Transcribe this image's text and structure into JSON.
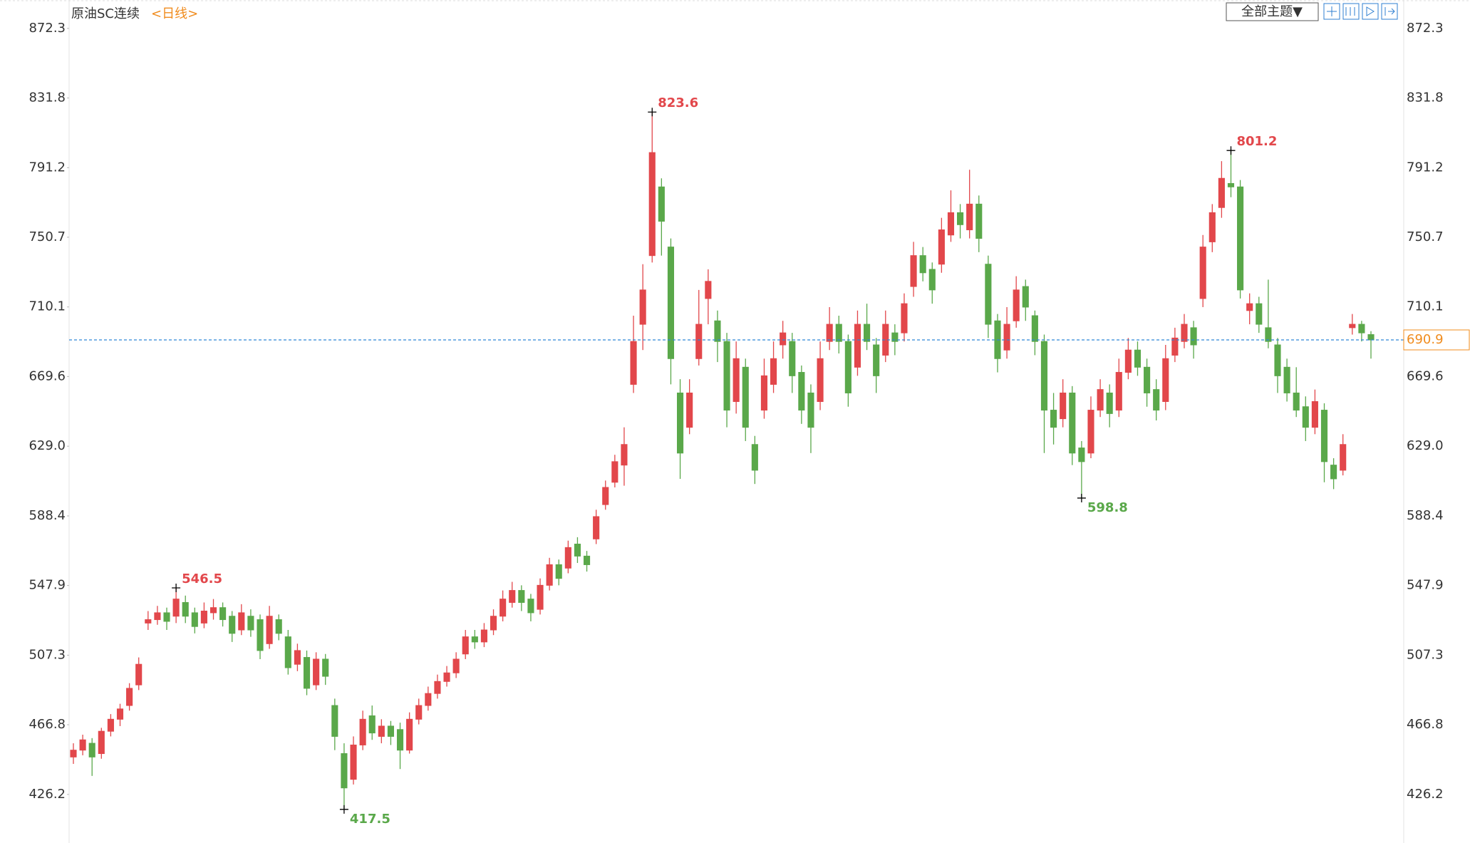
{
  "chart_data": {
    "type": "candlestick",
    "title": "原油SC连续",
    "period": "<日线>",
    "theme_button": "全部主题▼",
    "up_color": "#e2474b",
    "down_color": "#5aa84a",
    "last_line_color": "#2f86d6",
    "ylim": [
      400,
      887.6
    ],
    "yticks": [
      426.2,
      466.8,
      507.3,
      547.9,
      588.4,
      {
        "value": 629,
        "label": "629.0"
      },
      669.6,
      710.1,
      750.7,
      791.2,
      831.8,
      872.3
    ],
    "marked_highs": [
      11,
      62,
      124
    ],
    "marked_lows": [
      29,
      108
    ],
    "ohlc": [
      [
        448,
        456,
        444,
        452
      ],
      [
        452,
        461,
        449,
        458
      ],
      [
        456,
        459,
        437,
        448
      ],
      [
        450,
        465,
        447,
        463
      ],
      [
        463,
        473,
        460,
        470
      ],
      [
        470,
        479,
        466,
        476
      ],
      [
        478,
        491,
        475,
        488
      ],
      [
        490,
        506,
        487,
        502
      ],
      [
        526,
        533,
        522,
        528
      ],
      [
        528,
        536,
        525,
        532
      ],
      [
        532,
        535,
        522,
        527
      ],
      [
        530,
        546.5,
        526,
        540
      ],
      [
        538,
        542,
        526,
        530
      ],
      [
        532,
        535,
        520,
        524
      ],
      [
        526,
        538,
        523,
        533
      ],
      [
        532,
        540,
        528,
        535
      ],
      [
        535,
        538,
        524,
        528
      ],
      [
        530,
        533,
        515,
        520
      ],
      [
        522,
        537,
        519,
        532
      ],
      [
        530,
        534,
        518,
        522
      ],
      [
        528,
        531,
        505,
        510
      ],
      [
        514,
        536,
        511,
        530
      ],
      [
        528,
        531,
        516,
        520
      ],
      [
        518,
        522,
        496,
        500
      ],
      [
        502,
        514,
        498,
        510
      ],
      [
        506,
        510,
        484,
        488
      ],
      [
        490,
        509,
        487,
        505
      ],
      [
        505,
        508,
        490,
        495
      ],
      [
        478,
        482,
        452,
        460
      ],
      [
        450,
        456,
        417.5,
        430
      ],
      [
        435,
        460,
        432,
        455
      ],
      [
        455,
        475,
        452,
        470
      ],
      [
        472,
        478,
        458,
        462
      ],
      [
        460,
        470,
        456,
        466
      ],
      [
        466,
        469,
        455,
        460
      ],
      [
        464,
        468,
        441,
        452
      ],
      [
        452,
        474,
        450,
        470
      ],
      [
        470,
        482,
        467,
        478
      ],
      [
        478,
        489,
        475,
        485
      ],
      [
        485,
        496,
        482,
        492
      ],
      [
        492,
        501,
        489,
        497
      ],
      [
        497,
        509,
        494,
        505
      ],
      [
        508,
        522,
        505,
        518
      ],
      [
        518,
        522,
        511,
        515
      ],
      [
        515,
        526,
        512,
        522
      ],
      [
        522,
        534,
        519,
        530
      ],
      [
        530,
        545,
        527,
        540
      ],
      [
        538,
        550,
        535,
        545
      ],
      [
        545,
        548,
        533,
        538
      ],
      [
        540,
        543,
        527,
        532
      ],
      [
        534,
        552,
        531,
        548
      ],
      [
        548,
        564,
        545,
        560
      ],
      [
        560,
        563,
        548,
        552
      ],
      [
        558,
        574,
        555,
        570
      ],
      [
        572,
        576,
        561,
        565
      ],
      [
        565,
        568,
        556,
        560
      ],
      [
        575,
        592,
        572,
        588
      ],
      [
        595,
        609,
        592,
        605
      ],
      [
        608,
        624,
        605,
        620
      ],
      [
        618,
        640,
        606,
        630
      ],
      [
        665,
        705,
        660,
        690
      ],
      [
        700,
        735,
        685,
        720
      ],
      [
        740,
        823.6,
        736,
        800
      ],
      [
        780,
        785,
        740,
        760
      ],
      [
        745,
        750,
        665,
        680
      ],
      [
        660,
        668,
        610,
        625
      ],
      [
        640,
        668,
        636,
        660
      ],
      [
        680,
        720,
        676,
        700
      ],
      [
        715,
        732,
        700,
        725
      ],
      [
        702,
        708,
        678,
        690
      ],
      [
        690,
        695,
        640,
        650
      ],
      [
        655,
        690,
        648,
        680
      ],
      [
        675,
        680,
        632,
        640
      ],
      [
        630,
        635,
        607,
        615
      ],
      [
        650,
        680,
        645,
        670
      ],
      [
        665,
        690,
        660,
        680
      ],
      [
        688,
        702,
        680,
        695
      ],
      [
        690,
        695,
        660,
        670
      ],
      [
        672,
        676,
        642,
        650
      ],
      [
        660,
        665,
        625,
        640
      ],
      [
        655,
        690,
        650,
        680
      ],
      [
        690,
        710,
        685,
        700
      ],
      [
        700,
        705,
        683,
        690
      ],
      [
        690,
        694,
        652,
        660
      ],
      [
        675,
        708,
        670,
        700
      ],
      [
        700,
        712,
        685,
        690
      ],
      [
        688,
        692,
        660,
        670
      ],
      [
        682,
        708,
        678,
        700
      ],
      [
        695,
        700,
        682,
        690
      ],
      [
        695,
        718,
        690,
        712
      ],
      [
        722,
        748,
        716,
        740
      ],
      [
        740,
        745,
        725,
        730
      ],
      [
        732,
        736,
        712,
        720
      ],
      [
        735,
        762,
        730,
        755
      ],
      [
        752,
        778,
        748,
        765
      ],
      [
        765,
        770,
        750,
        758
      ],
      [
        755,
        790,
        750,
        770
      ],
      [
        770,
        775,
        742,
        750
      ],
      [
        735,
        740,
        692,
        700
      ],
      [
        702,
        706,
        672,
        680
      ],
      [
        685,
        710,
        680,
        700
      ],
      [
        702,
        728,
        698,
        720
      ],
      [
        722,
        726,
        702,
        710
      ],
      [
        705,
        708,
        682,
        690
      ],
      [
        690,
        694,
        625,
        650
      ],
      [
        650,
        660,
        630,
        640
      ],
      [
        645,
        668,
        640,
        660
      ],
      [
        660,
        664,
        618,
        625
      ],
      [
        628,
        632,
        598.8,
        620
      ],
      [
        625,
        658,
        622,
        650
      ],
      [
        650,
        668,
        646,
        662
      ],
      [
        660,
        665,
        640,
        648
      ],
      [
        650,
        680,
        646,
        672
      ],
      [
        672,
        692,
        668,
        685
      ],
      [
        685,
        690,
        670,
        675
      ],
      [
        675,
        680,
        652,
        660
      ],
      [
        662,
        668,
        644,
        650
      ],
      [
        655,
        688,
        650,
        680
      ],
      [
        682,
        698,
        678,
        692
      ],
      [
        690,
        706,
        686,
        700
      ],
      [
        698,
        702,
        680,
        688
      ],
      [
        715,
        752,
        710,
        745
      ],
      [
        748,
        770,
        742,
        765
      ],
      [
        768,
        795,
        762,
        785
      ],
      [
        782,
        801.2,
        774,
        780
      ],
      [
        780,
        784,
        715,
        720
      ],
      [
        708,
        718,
        700,
        712
      ],
      [
        712,
        716,
        695,
        700
      ],
      [
        698,
        726,
        686,
        690
      ],
      [
        688,
        692,
        660,
        670
      ],
      [
        675,
        680,
        655,
        660
      ],
      [
        660,
        675,
        646,
        650
      ],
      [
        652,
        658,
        632,
        640
      ],
      [
        640,
        662,
        636,
        655
      ],
      [
        650,
        654,
        608,
        620
      ],
      [
        618,
        622,
        604,
        610
      ],
      [
        615,
        636,
        612,
        630
      ],
      [
        698,
        706,
        694,
        700
      ],
      [
        700,
        702,
        690,
        695
      ],
      [
        694,
        696,
        680,
        690.9
      ]
    ]
  }
}
